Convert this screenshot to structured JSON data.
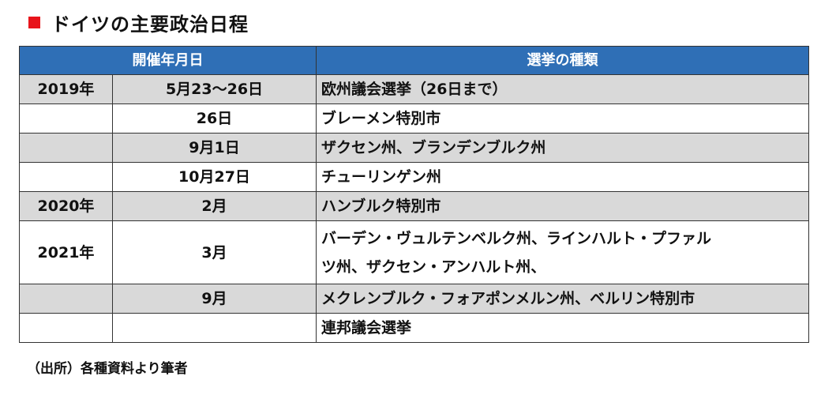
{
  "title": "ドイツの主要政治日程",
  "colors": {
    "header_bg": "#2f6fb6",
    "row_shade": "#d9d9d9",
    "title_marker": "#e8141b"
  },
  "table": {
    "headers": {
      "date": "開催年月日",
      "type": "選挙の種類"
    },
    "rows": [
      {
        "year": "2019年",
        "date": "5月23～26日",
        "type": "欧州議会選挙（26日まで）",
        "shaded": true
      },
      {
        "year": "",
        "date": "26日",
        "type": "ブレーメン特別市",
        "shaded": false
      },
      {
        "year": "",
        "date": "9月1日",
        "type": "ザクセン州、ブランデンブルク州",
        "shaded": true
      },
      {
        "year": "",
        "date": "10月27日",
        "type": "チューリンゲン州",
        "shaded": false
      },
      {
        "year": "2020年",
        "date": "2月",
        "type": "ハンブルク特別市",
        "shaded": true
      },
      {
        "year": "2021年",
        "date": "3月",
        "type_line1": "バーデン・ヴュルテンベルク州、ラインハルト・プファル",
        "type_line2": "ツ州、ザクセン・アンハルト州、",
        "shaded": false
      },
      {
        "year": "",
        "date": "9月",
        "type": "メクレンブルク・フォアポンメルン州、ベルリン特別市",
        "shaded": true
      },
      {
        "year": "",
        "date": "",
        "type": "連邦議会選挙",
        "shaded": false
      }
    ]
  },
  "source": "（出所）各種資料より筆者"
}
